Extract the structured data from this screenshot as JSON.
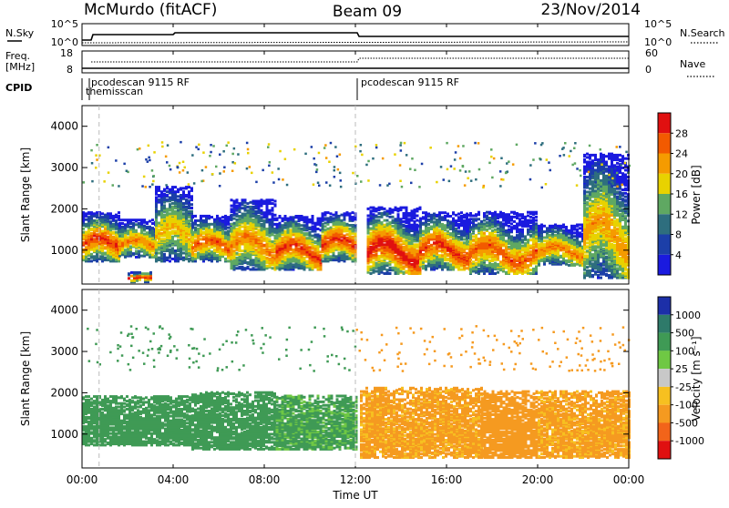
{
  "header": {
    "station": "McMurdo (fitACF)",
    "beam": "Beam 09",
    "date": "23/Nov/2014"
  },
  "top_panels": {
    "nsky_label": "N.Sky",
    "nsearch_label": "N.Search",
    "nsky_ticks": [
      "10^5",
      "10^0"
    ],
    "nsearch_ticks": [
      "10^5",
      "10^0"
    ],
    "freq_label_line1": "Freq.",
    "freq_label_line2": "[MHz]",
    "freq_ticks": [
      "18",
      "8"
    ],
    "nave_label": "Nave",
    "nave_ticks": [
      "60",
      "0"
    ],
    "cpid_label": "CPID",
    "cpid_entries": [
      {
        "text": "pcodescan 9115 RF",
        "time_h": 0.25
      },
      {
        "text": "themisscan",
        "time_h": 0.1
      },
      {
        "text": "pcodescan 9115 RF",
        "time_h": 12.0
      }
    ]
  },
  "axes": {
    "ylabel": "Slant Range [km]",
    "xlabel": "Time UT",
    "yticks": [
      "4000",
      "3000",
      "2000",
      "1000"
    ],
    "xticks": [
      "00:00",
      "04:00",
      "08:00",
      "12:00",
      "16:00",
      "20:00",
      "00:00"
    ]
  },
  "power_scale": {
    "title": "Power [dB]",
    "labels": [
      "28",
      "24",
      "20",
      "16",
      "12",
      "8",
      "4"
    ],
    "colors": [
      "#e01010",
      "#f25a00",
      "#f59b00",
      "#e8d200",
      "#5fa862",
      "#2e6e7e",
      "#1c3fa8",
      "#1a1adf"
    ]
  },
  "velocity_scale": {
    "title": "Velocity [m s⁻¹]",
    "labels": [
      "1000",
      "500",
      "100",
      "25",
      "-25",
      "-100",
      "-500",
      "-1000"
    ],
    "colors": [
      "#1c2fa8",
      "#2e7a6a",
      "#3f9a55",
      "#6fc844",
      "#c8c8c8",
      "#f7c020",
      "#f59a20",
      "#f2641a",
      "#e01010"
    ]
  },
  "chart_data": [
    {
      "type": "heatmap",
      "name": "power",
      "x_range_h": [
        0,
        24
      ],
      "y_range_km": [
        180,
        4500
      ],
      "clusters": [
        {
          "t0": 0.0,
          "t1": 1.6,
          "r0": 700,
          "r1": 1900,
          "peak_db": 28
        },
        {
          "t0": 1.6,
          "t1": 3.2,
          "r0": 800,
          "r1": 1700,
          "peak_db": 24
        },
        {
          "t0": 2.0,
          "t1": 3.0,
          "r0": 200,
          "r1": 450,
          "peak_db": 30
        },
        {
          "t0": 3.2,
          "t1": 4.8,
          "r0": 700,
          "r1": 2500,
          "peak_db": 20
        },
        {
          "t0": 4.8,
          "t1": 6.5,
          "r0": 700,
          "r1": 1800,
          "peak_db": 26
        },
        {
          "t0": 6.5,
          "t1": 8.5,
          "r0": 500,
          "r1": 2200,
          "peak_db": 24
        },
        {
          "t0": 8.5,
          "t1": 10.5,
          "r0": 500,
          "r1": 1800,
          "peak_db": 28
        },
        {
          "t0": 10.5,
          "t1": 12.0,
          "r0": 700,
          "r1": 1900,
          "peak_db": 28
        },
        {
          "t0": 12.5,
          "t1": 14.8,
          "r0": 400,
          "r1": 2000,
          "peak_db": 30
        },
        {
          "t0": 14.8,
          "t1": 17.0,
          "r0": 500,
          "r1": 1900,
          "peak_db": 28
        },
        {
          "t0": 17.0,
          "t1": 20.0,
          "r0": 400,
          "r1": 1900,
          "peak_db": 26
        },
        {
          "t0": 20.0,
          "t1": 22.0,
          "r0": 600,
          "r1": 1600,
          "peak_db": 24
        },
        {
          "t0": 22.0,
          "t1": 24.0,
          "r0": 300,
          "r1": 3300,
          "peak_db": 22
        }
      ]
    },
    {
      "type": "heatmap",
      "name": "velocity",
      "x_range_h": [
        0,
        24
      ],
      "y_range_km": [
        180,
        4500
      ],
      "clusters": [
        {
          "t0": 0.0,
          "t1": 4.8,
          "r0": 700,
          "r1": 1900,
          "vel": 300
        },
        {
          "t0": 4.8,
          "t1": 8.5,
          "r0": 600,
          "r1": 2000,
          "vel": 250
        },
        {
          "t0": 8.5,
          "t1": 12.0,
          "r0": 600,
          "r1": 1900,
          "vel": 150
        },
        {
          "t0": 12.2,
          "t1": 17.5,
          "r0": 400,
          "r1": 2100,
          "vel": -150
        },
        {
          "t0": 17.5,
          "t1": 20.0,
          "r0": 400,
          "r1": 2000,
          "vel": -300
        },
        {
          "t0": 20.0,
          "t1": 24.0,
          "r0": 400,
          "r1": 2000,
          "vel": -150
        }
      ]
    }
  ]
}
